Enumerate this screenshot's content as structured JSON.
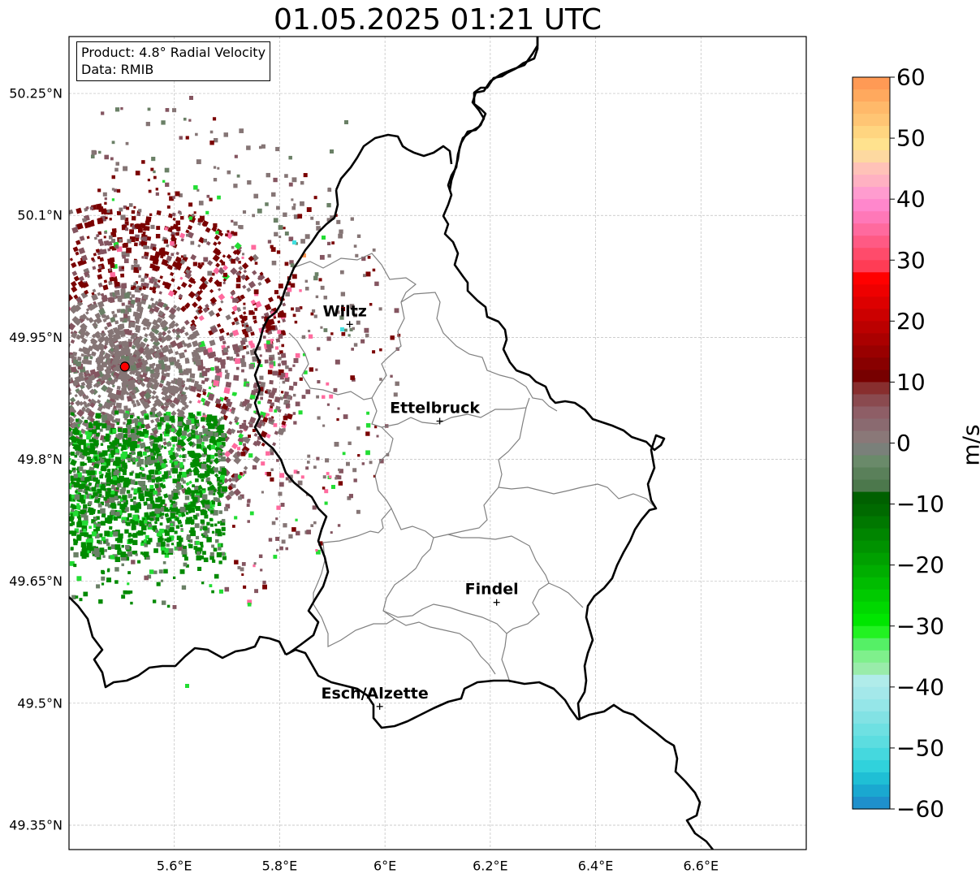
{
  "title": "01.05.2025 01:21 UTC",
  "info": {
    "product_line": "Product: 4.8° Radial Velocity",
    "data_line": "Data: RMIB"
  },
  "map": {
    "lon_range": [
      5.4,
      6.8
    ],
    "lat_range": [
      49.32,
      50.32
    ],
    "lat_ticks": [
      {
        "value": 50.25,
        "label": "50.25°N"
      },
      {
        "value": 50.1,
        "label": "50.1°N"
      },
      {
        "value": 49.95,
        "label": "49.95°N"
      },
      {
        "value": 49.8,
        "label": "49.8°N"
      },
      {
        "value": 49.65,
        "label": "49.65°N"
      },
      {
        "value": 49.5,
        "label": "49.5°N"
      },
      {
        "value": 49.35,
        "label": "49.35°N"
      }
    ],
    "lon_ticks": [
      {
        "value": 5.6,
        "label": "5.6°E"
      },
      {
        "value": 5.8,
        "label": "5.8°E"
      },
      {
        "value": 6.0,
        "label": "6°E"
      },
      {
        "value": 6.2,
        "label": "6.2°E"
      },
      {
        "value": 6.4,
        "label": "6.4°E"
      },
      {
        "value": 6.6,
        "label": "6.6°E"
      }
    ],
    "grid": true,
    "radar_site": {
      "lon": 5.506,
      "lat": 49.914
    },
    "cities": [
      {
        "name": "Wiltz",
        "lon": 5.933,
        "lat": 49.966
      },
      {
        "name": "Ettelbruck",
        "lon": 6.104,
        "lat": 49.847
      },
      {
        "name": "Findel",
        "lon": 6.212,
        "lat": 49.624
      },
      {
        "name": "Esch/Alzette",
        "lon": 5.99,
        "lat": 49.496
      }
    ]
  },
  "colorbar": {
    "unit": "m/s",
    "min": -60,
    "max": 60,
    "ticks": [
      {
        "value": 60,
        "label": "60"
      },
      {
        "value": 50,
        "label": "50"
      },
      {
        "value": 40,
        "label": "40"
      },
      {
        "value": 30,
        "label": "30"
      },
      {
        "value": 20,
        "label": "20"
      },
      {
        "value": 10,
        "label": "10"
      },
      {
        "value": 0,
        "label": "0"
      },
      {
        "value": -10,
        "label": "−10"
      },
      {
        "value": -20,
        "label": "−20"
      },
      {
        "value": -30,
        "label": "−30"
      },
      {
        "value": -40,
        "label": "−40"
      },
      {
        "value": -50,
        "label": "−50"
      },
      {
        "value": -60,
        "label": "−60"
      }
    ],
    "colors_top_down": [
      "#ff9a55",
      "#ffa95e",
      "#ffb96a",
      "#ffc574",
      "#ffd580",
      "#ffe28e",
      "#fdd9a0",
      "#ffc2b8",
      "#ffb1c2",
      "#ff9ccf",
      "#ff87cc",
      "#ff78b8",
      "#ff6a9e",
      "#ff5a84",
      "#ff4b6b",
      "#ff3c55",
      "#ff0000",
      "#ee0000",
      "#dd0000",
      "#cc0000",
      "#bb0000",
      "#aa0000",
      "#990000",
      "#880000",
      "#770000",
      "#882e2e",
      "#8a4a4f",
      "#8e5e66",
      "#8a6a70",
      "#8a7878",
      "#7a807a",
      "#6a8a6a",
      "#5a805a",
      "#4c784c",
      "#006000",
      "#006a00",
      "#007800",
      "#008500",
      "#009200",
      "#00a000",
      "#00ae00",
      "#00bc00",
      "#00ca00",
      "#00d800",
      "#00e600",
      "#22f222",
      "#55f066",
      "#7ff08c",
      "#99ecaa",
      "#b0ecea",
      "#a4e8ea",
      "#95e6e8",
      "#82e2e4",
      "#6ee0e2",
      "#5cdde0",
      "#45d8de",
      "#30d2dc",
      "#1fbfd5",
      "#1aa8d0",
      "#1e90cc"
    ]
  },
  "styles": {
    "border_color": "#000000",
    "canton_color": "#808080",
    "radar_site_color": "#ff0000",
    "palette": {
      "dark_red": "#7a0000",
      "maroon_grey": "#845560",
      "grey": "#857575",
      "grey_green": "#6a8066",
      "green": "#008a00",
      "bright_green": "#22dd33",
      "pink": "#ff6a9e",
      "cyan": "#40e0e0"
    }
  }
}
